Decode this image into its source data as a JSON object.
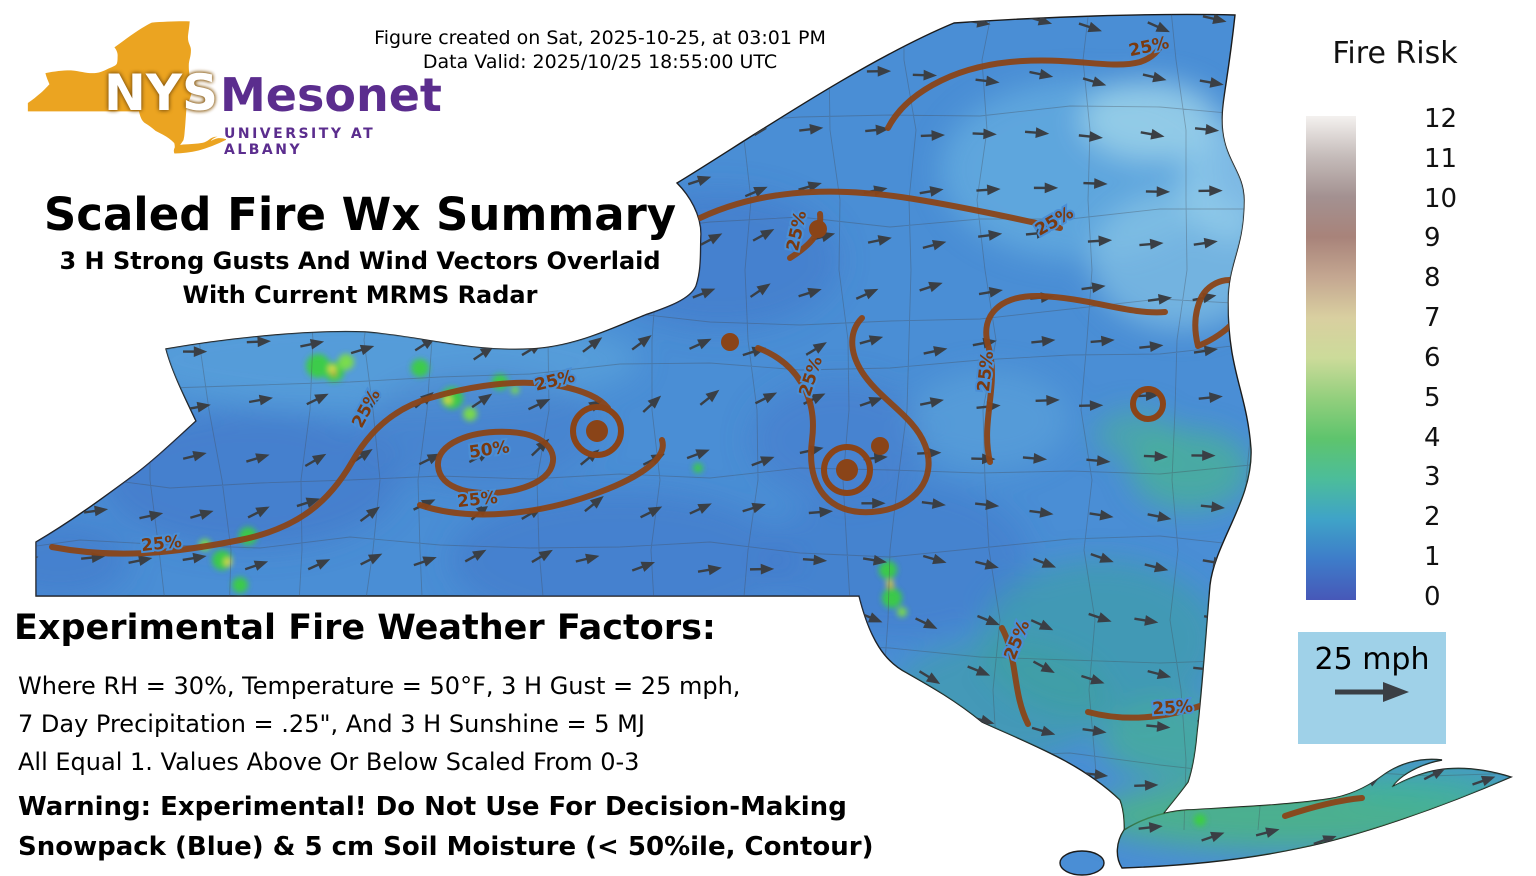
{
  "header": {
    "created_line": "Figure created on Sat, 2025-10-25, at 03:01 PM",
    "valid_line": "Data Valid: 2025/10/25 18:55:00 UTC"
  },
  "logo": {
    "nys": "NYS",
    "mesonet": "Mesonet",
    "university": "UNIVERSITY AT ALBANY"
  },
  "title": {
    "main": "Scaled Fire Wx Summary",
    "sub_line1": "3 H Strong Gusts And Wind Vectors Overlaid",
    "sub_line2": "With Current MRMS Radar"
  },
  "map": {
    "contour_label_25": "25%",
    "contour_label_50": "50%",
    "state_fill": "#4a8ed5",
    "state_border_color": "#1b1b1b",
    "contour_color": "#8a4418",
    "arrow_color": "#3a3f45"
  },
  "colorbar": {
    "title": "Fire Risk",
    "ticks": [
      12,
      11,
      10,
      9,
      8,
      7,
      6,
      5,
      4,
      3,
      2,
      1,
      0
    ],
    "gradient_bottom_to_top": [
      "#4758b8",
      "#3e7cc9",
      "#3fa3c8",
      "#4cbd9a",
      "#5ec46d",
      "#93cf7d",
      "#ccdb9a",
      "#d9cfa0",
      "#c4a791",
      "#a8837a",
      "#a39191",
      "#c5bcba",
      "#f4f1ef"
    ]
  },
  "wind_legend": {
    "label": "25 mph",
    "bg": "#9fd1e8"
  },
  "footer": {
    "heading": "Experimental Fire Weather Factors:",
    "factors": [
      "Where RH = 30%, Temperature = 50°F, 3 H Gust = 25 mph,",
      "7 Day Precipitation = .25\", And 3 H Sunshine = 5 MJ",
      "All Equal 1. Values Above Or Below Scaled From 0-3"
    ],
    "warning": "Warning: Experimental! Do Not Use For Decision-Making",
    "note": "Snowpack (Blue) & 5 cm Soil Moisture (< 50%ile, Contour)"
  }
}
